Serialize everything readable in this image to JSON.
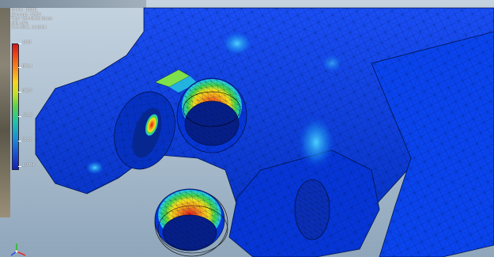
{
  "info": {
    "nodes": "Nodes: 129011",
    "elements": "Elements: 73452",
    "type": "Type: Von Mises Stress",
    "unit": "Unit: MPa",
    "timestamp": "11-5-2014, 14:16:54"
  },
  "legend": {
    "max_label": "1000",
    "labels": [
      "800,4",
      "600,9",
      "401,2",
      "201,5"
    ],
    "min_label": "1,9 Min"
  },
  "colors": {
    "mesh_blue": "#0a3fe8",
    "stress_red": "#e4141a",
    "stress_yellow": "#f4e21c",
    "stress_green": "#3fd24a",
    "stress_cyan": "#27d0e0",
    "background_top": "#c5d3e0",
    "background_bottom": "#8fa6bb"
  },
  "icons": {
    "axis_triad": "xyz-axis-triad-icon"
  }
}
